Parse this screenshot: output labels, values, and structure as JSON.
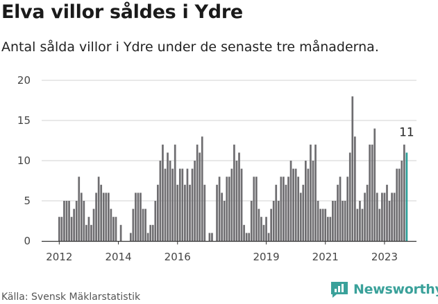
{
  "header": {
    "title": "Elva villor såldes i Ydre",
    "subtitle": "Antal sålda villor i Ydre under de senaste tre månaderna."
  },
  "footer": {
    "source": "Källa: Svensk Mäklarstatistik",
    "brand": "Newsworthy"
  },
  "colors": {
    "bar": "#6e6d70",
    "highlight": "#2a9d96",
    "grid": "#d0d0d0",
    "brand": "#3aa19a"
  },
  "chart_data": {
    "type": "bar",
    "title": "Elva villor såldes i Ydre",
    "ylim": [
      0,
      20
    ],
    "yticks": [
      "0",
      "5",
      "10",
      "15",
      "20"
    ],
    "xticks": [
      "2012",
      "2014",
      "2016",
      "2019",
      "2021",
      "2023"
    ],
    "grid": true,
    "annotation": "11",
    "series": [
      {
        "start": "2012-01",
        "values": [
          3,
          3,
          5,
          5,
          5,
          3,
          4,
          5,
          8,
          6,
          5,
          2,
          3,
          2,
          4,
          6,
          8,
          7,
          6,
          6,
          6,
          4,
          3,
          3,
          0,
          2,
          0,
          0,
          0,
          1,
          4,
          6,
          6,
          6,
          4,
          4,
          1,
          2,
          2,
          5,
          7,
          10,
          12,
          9,
          11,
          10,
          9,
          12,
          7,
          9,
          9,
          7,
          9,
          7,
          9,
          10,
          12,
          11,
          13,
          7,
          0,
          1,
          1,
          0,
          7,
          8,
          6,
          5,
          8,
          8,
          9,
          12,
          10,
          11,
          9,
          2,
          1,
          1,
          5,
          8,
          8,
          4,
          3,
          2,
          3,
          1,
          4,
          5,
          7,
          5,
          8,
          8,
          7,
          8,
          10,
          9,
          9,
          8,
          6,
          7,
          10,
          9,
          12,
          10,
          12,
          5,
          4,
          4,
          4,
          3,
          3,
          5,
          5,
          7,
          8,
          5,
          5,
          8,
          11,
          18,
          13,
          4,
          5,
          4,
          6,
          7,
          12,
          12,
          14,
          6,
          4,
          6,
          6,
          7,
          5,
          6,
          6,
          9,
          9,
          10,
          12,
          11
        ]
      }
    ]
  }
}
